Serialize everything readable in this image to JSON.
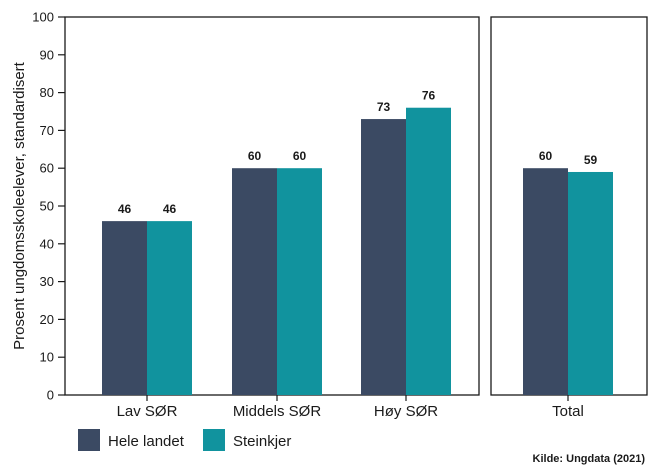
{
  "chart_data": {
    "type": "bar",
    "ylabel": "Prosent ungdomsskoleelever, standardisert",
    "ylim": [
      0,
      100
    ],
    "yticks": [
      0,
      10,
      20,
      30,
      40,
      50,
      60,
      70,
      80,
      90,
      100
    ],
    "categories": [
      "Lav SØR",
      "Middels SØR",
      "Høy SØR"
    ],
    "total_category": "Total",
    "series": [
      {
        "name": "Hele landet",
        "color": "#3b4a63",
        "values": [
          46,
          60,
          73
        ],
        "total": 60
      },
      {
        "name": "Steinkjer",
        "color": "#11939e",
        "values": [
          46,
          60,
          76
        ],
        "total": 59
      }
    ],
    "legend_position": "bottom-left",
    "source": "Kilde: Ungdata (2021)"
  }
}
